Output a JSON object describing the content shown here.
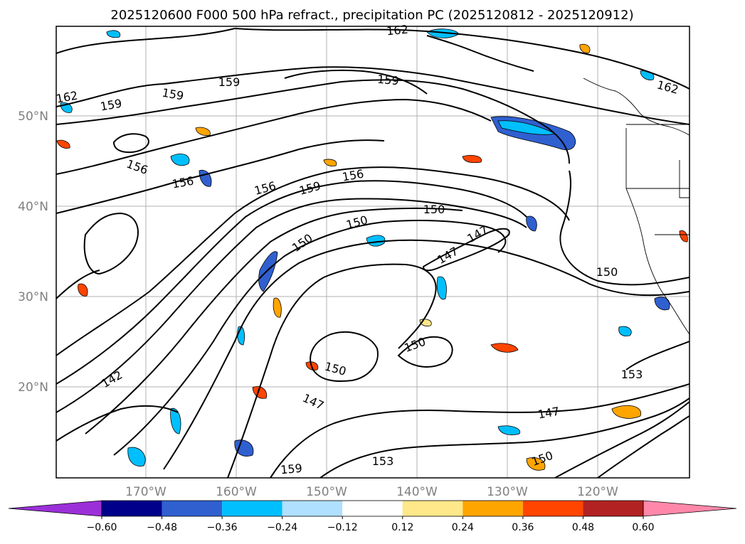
{
  "title": "2025120600 F000 500 hPa refract., precipitation PC (2025120812 - 2025120912)",
  "latitude_labels": [
    "50°N",
    "40°N",
    "30°N",
    "20°N"
  ],
  "longitude_labels": [
    "170°W",
    "160°W",
    "150°W",
    "140°W",
    "130°W",
    "120°W"
  ],
  "contour_labels": [
    "162",
    "159",
    "159",
    "159",
    "162",
    "162",
    "159",
    "156",
    "156",
    "156",
    "159",
    "156",
    "150",
    "150",
    "147",
    "147",
    "150",
    "150",
    "150",
    "150",
    "147",
    "153",
    "147",
    "150",
    "159",
    "153",
    "142"
  ],
  "colorbar": {
    "ticks": [
      "−0.60",
      "−0.48",
      "−0.36",
      "−0.24",
      "−0.12",
      "0.12",
      "0.24",
      "0.36",
      "0.48",
      "0.60"
    ],
    "colors": [
      "#9b30d9",
      "#00008b",
      "#3060d0",
      "#00bfff",
      "#b0e0ff",
      "#ffffff",
      "#ffe88a",
      "#ffa500",
      "#ff4500",
      "#b22222",
      "#ff88aa"
    ]
  }
}
